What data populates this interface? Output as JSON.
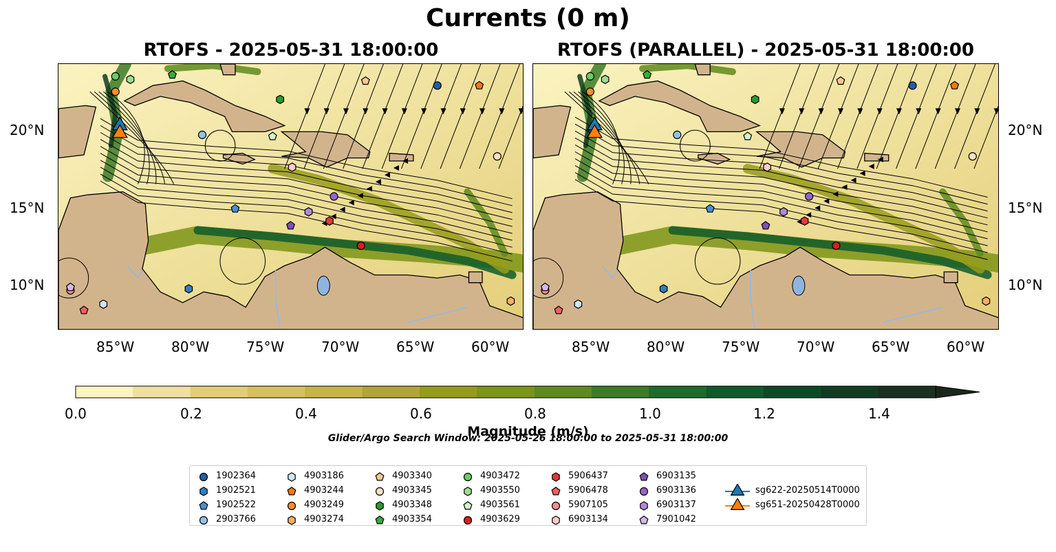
{
  "title": "Currents (0 m)",
  "panels": [
    {
      "label": "RTOFS - 2025-05-31 18:00:00"
    },
    {
      "label": "RTOFS (PARALLEL) - 2025-05-31 18:00:00"
    }
  ],
  "axes": {
    "x_ticks": [
      "85°W",
      "80°W",
      "75°W",
      "70°W",
      "65°W",
      "60°W"
    ],
    "y_ticks": [
      "20°N",
      "15°N",
      "10°N"
    ]
  },
  "colorbar": {
    "label": "Magnitude (m/s)",
    "ticks": [
      "0.0",
      "0.2",
      "0.4",
      "0.6",
      "0.8",
      "1.0",
      "1.2",
      "1.4"
    ],
    "colors": [
      "#fbf3c0",
      "#efe0a0",
      "#e3ce78",
      "#d6c05e",
      "#c6b448",
      "#b0a536",
      "#979b1c",
      "#7c9417",
      "#5e8a1f",
      "#3c7a28",
      "#1e6c2c",
      "#0f5a2a",
      "#0b4a25",
      "#123c22",
      "#1a3020",
      "#1a261a"
    ]
  },
  "search_window": "Glider/Argo Search Window: 2025-05-26 18:00:00 to 2025-05-31 18:00:00",
  "legend": [
    {
      "label": "1902364",
      "shape": "circle",
      "color": "#1f5fa8"
    },
    {
      "label": "1902521",
      "shape": "hexagon",
      "color": "#2f7fc0"
    },
    {
      "label": "1902522",
      "shape": "pentagon",
      "color": "#4a90d0"
    },
    {
      "label": "2903766",
      "shape": "circle",
      "color": "#8fc4e8"
    },
    {
      "label": "4903186",
      "shape": "hexagon",
      "color": "#cfe6f7"
    },
    {
      "label": "4903244",
      "shape": "pentagon",
      "color": "#f07a10"
    },
    {
      "label": "4903249",
      "shape": "circle",
      "color": "#f5902a"
    },
    {
      "label": "4903274",
      "shape": "hexagon",
      "color": "#f7b060"
    },
    {
      "label": "4903340",
      "shape": "pentagon",
      "color": "#fbc890"
    },
    {
      "label": "4903345",
      "shape": "circle",
      "color": "#fde0c0"
    },
    {
      "label": "4903348",
      "shape": "hexagon",
      "color": "#2c9a2c"
    },
    {
      "label": "4903354",
      "shape": "pentagon",
      "color": "#3aab3a"
    },
    {
      "label": "4903472",
      "shape": "circle",
      "color": "#6acc64"
    },
    {
      "label": "4903550",
      "shape": "hexagon",
      "color": "#a0dd94"
    },
    {
      "label": "4903561",
      "shape": "pentagon",
      "color": "#d4f2cc"
    },
    {
      "label": "4903629",
      "shape": "circle",
      "color": "#d62020"
    },
    {
      "label": "5906437",
      "shape": "hexagon",
      "color": "#e03a3a"
    },
    {
      "label": "5906478",
      "shape": "pentagon",
      "color": "#ee6060"
    },
    {
      "label": "5907105",
      "shape": "circle",
      "color": "#f29090"
    },
    {
      "label": "6903134",
      "shape": "hexagon",
      "color": "#fbcccc"
    },
    {
      "label": "6903135",
      "shape": "pentagon",
      "color": "#7f4fb8"
    },
    {
      "label": "6903136",
      "shape": "circle",
      "color": "#9466c8"
    },
    {
      "label": "6903137",
      "shape": "hexagon",
      "color": "#b08ad8"
    },
    {
      "label": "7901042",
      "shape": "pentagon",
      "color": "#d2b8ec"
    },
    {
      "label": "sg622-20250514T0000",
      "shape": "triangle",
      "color": "#1f77b4"
    },
    {
      "label": "sg651-20250428T0000",
      "shape": "triangle",
      "color": "#ff7f0e"
    }
  ],
  "map_colors": {
    "land": "#d2b48c",
    "lake": "#8fb4e0",
    "river": "#9fb8d8",
    "ocean_low": "#f6eaa8"
  },
  "floats_on_map": [
    {
      "id": "4903472",
      "lon": -85.5,
      "lat": 23.5
    },
    {
      "id": "4903550",
      "lon": -84.5,
      "lat": 23.3
    },
    {
      "id": "4903354",
      "lon": -81.7,
      "lat": 23.6
    },
    {
      "id": "4903249",
      "lon": -85.5,
      "lat": 22.5
    },
    {
      "id": "4903340",
      "lon": -68.8,
      "lat": 23.2
    },
    {
      "id": "1902364",
      "lon": -64.0,
      "lat": 22.9
    },
    {
      "id": "4903244",
      "lon": -61.2,
      "lat": 22.9
    },
    {
      "id": "4903348",
      "lon": -74.5,
      "lat": 22.0
    },
    {
      "id": "2903766",
      "lon": -79.7,
      "lat": 19.7
    },
    {
      "id": "4903561",
      "lon": -75.0,
      "lat": 19.6
    },
    {
      "id": "6903134",
      "lon": -73.7,
      "lat": 17.6
    },
    {
      "id": "4903345",
      "lon": -60.0,
      "lat": 18.3
    },
    {
      "id": "6903136",
      "lon": -70.9,
      "lat": 15.7
    },
    {
      "id": "1902522",
      "lon": -77.5,
      "lat": 14.9
    },
    {
      "id": "6903137",
      "lon": -72.6,
      "lat": 14.7
    },
    {
      "id": "5906437",
      "lon": -71.2,
      "lat": 14.1
    },
    {
      "id": "6903135",
      "lon": -73.8,
      "lat": 13.8
    },
    {
      "id": "4903629",
      "lon": -69.1,
      "lat": 12.5
    },
    {
      "id": "1902521",
      "lon": -80.6,
      "lat": 9.7
    },
    {
      "id": "5907105",
      "lon": -88.5,
      "lat": 9.6
    },
    {
      "id": "7901042",
      "lon": -88.5,
      "lat": 9.8
    },
    {
      "id": "4903186",
      "lon": -86.3,
      "lat": 8.7
    },
    {
      "id": "5906478",
      "lon": -87.6,
      "lat": 8.3
    },
    {
      "id": "4903274",
      "lon": -59.1,
      "lat": 8.9
    }
  ],
  "gliders_on_map": [
    {
      "id": "sg622-20250514T0000",
      "lon": -85.2,
      "lat": 20.3
    },
    {
      "id": "sg651-20250428T0000",
      "lon": -85.2,
      "lat": 19.8
    }
  ]
}
